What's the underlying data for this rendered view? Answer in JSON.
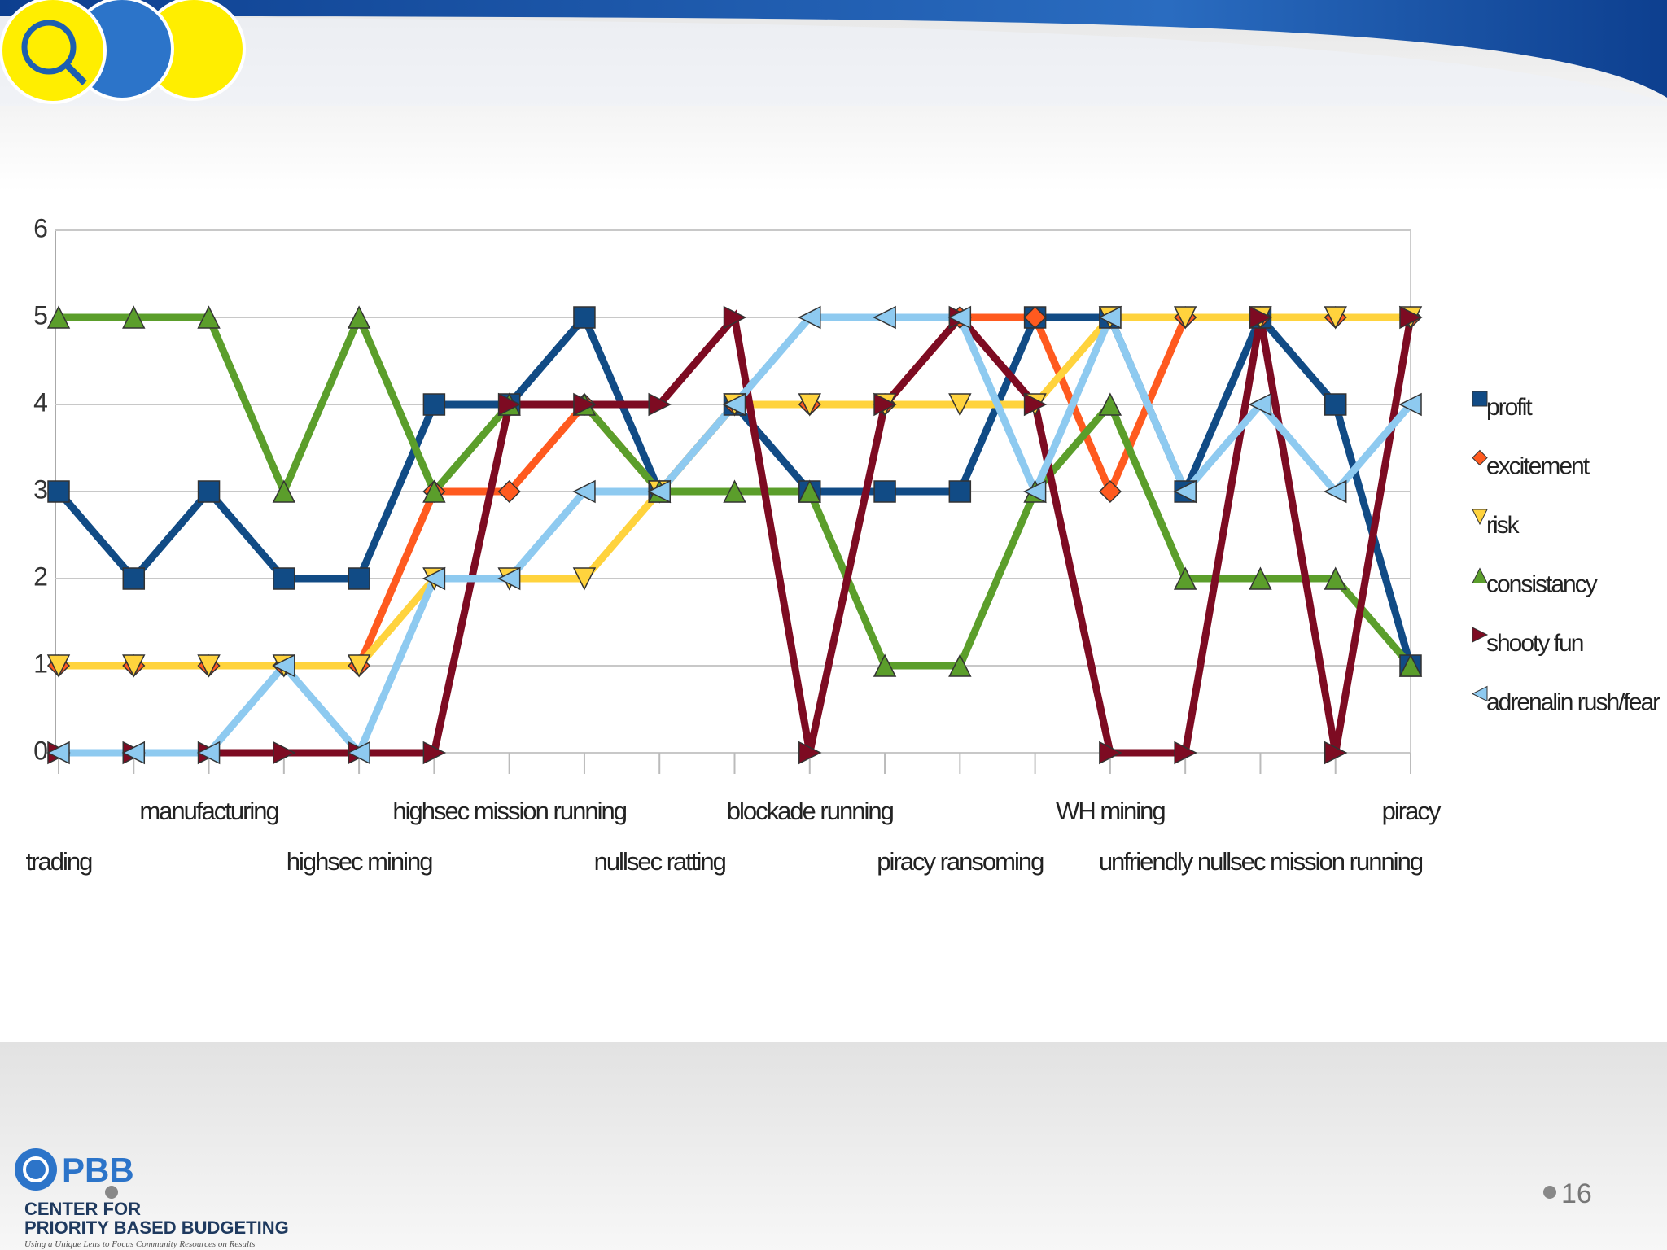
{
  "slide": {
    "logo_text": "PBB",
    "org_line1": "CENTER FOR",
    "org_line2": "PRIORITY BASED BUDGETING",
    "tagline": "Using a Unique Lens to Focus Community Resources on Results",
    "page_number": "16"
  },
  "chart_data": {
    "type": "line",
    "categories": [
      "trading",
      null,
      "manufacturing",
      null,
      "highsec mining",
      null,
      "highsec mission running",
      null,
      "nullsec ratting",
      null,
      "blockade running",
      null,
      "piracy ransoming",
      null,
      "WH mining",
      null,
      "unfriendly nullsec mission running",
      null,
      "piracy"
    ],
    "series": [
      {
        "name": "profit",
        "color": "#114b85",
        "marker": "square",
        "values": [
          3,
          2,
          3,
          2,
          2,
          4,
          4,
          5,
          3,
          4,
          3,
          3,
          3,
          5,
          5,
          3,
          5,
          4,
          1
        ]
      },
      {
        "name": "excitement",
        "color": "#ff5a1f",
        "marker": "diamond",
        "values": [
          1,
          1,
          1,
          1,
          1,
          3,
          3,
          4,
          3,
          4,
          4,
          4,
          5,
          5,
          3,
          5,
          5,
          5,
          5
        ]
      },
      {
        "name": "risk",
        "color": "#ffd33d",
        "marker": "triangle-down",
        "values": [
          1,
          1,
          1,
          1,
          1,
          2,
          2,
          2,
          3,
          4,
          4,
          4,
          4,
          4,
          5,
          5,
          5,
          5,
          5
        ]
      },
      {
        "name": "consistancy",
        "color": "#5b9e2b",
        "marker": "triangle-up",
        "values": [
          5,
          5,
          5,
          3,
          5,
          3,
          4,
          4,
          3,
          3,
          3,
          1,
          1,
          3,
          4,
          2,
          2,
          2,
          1
        ]
      },
      {
        "name": "shooty fun",
        "color": "#7d0b22",
        "marker": "triangle-right",
        "values": [
          0,
          0,
          0,
          0,
          0,
          0,
          4,
          4,
          4,
          5,
          0,
          4,
          5,
          4,
          0,
          0,
          5,
          0,
          5
        ]
      },
      {
        "name": "adrenalin rush/fear",
        "color": "#8ecaf0",
        "marker": "triangle-left",
        "values": [
          0,
          0,
          0,
          1,
          0,
          2,
          2,
          3,
          3,
          4,
          5,
          5,
          5,
          3,
          5,
          3,
          4,
          3,
          4
        ]
      }
    ],
    "ylim": [
      0,
      6
    ],
    "yticks": [
      0,
      1,
      2,
      3,
      4,
      5,
      6
    ],
    "grid": true,
    "legend": "right"
  }
}
